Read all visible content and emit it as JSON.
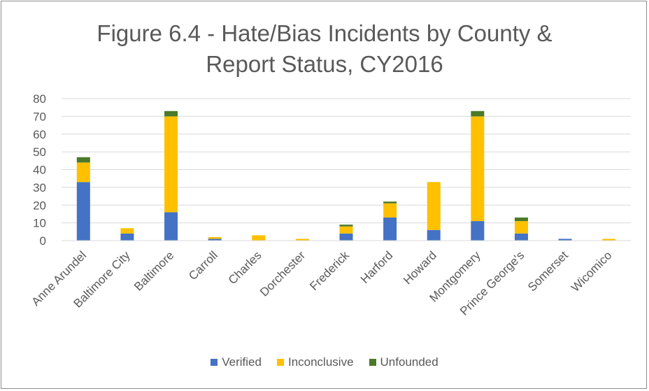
{
  "chart_data": {
    "type": "bar",
    "stacked": true,
    "title": "Figure 6.4 - Hate/Bias Incidents by County & Report Status, CY2016",
    "title_lines": [
      "Figure 6.4 - Hate/Bias Incidents by County &",
      "Report Status, CY2016"
    ],
    "xlabel": "",
    "ylabel": "",
    "ylim": [
      0,
      80
    ],
    "yticks": [
      0,
      10,
      20,
      30,
      40,
      50,
      60,
      70,
      80
    ],
    "grid": true,
    "legend_position": "bottom",
    "categories": [
      "Anne Arundel",
      "Baltimore City",
      "Baltimore",
      "Carroll",
      "Charles",
      "Dorchester",
      "Frederick",
      "Harford",
      "Howard",
      "Montgomery",
      "Prince George's",
      "Somerset",
      "Wicomico"
    ],
    "series": [
      {
        "name": "Verified",
        "color": "#4472c4",
        "values": [
          33,
          4,
          16,
          1,
          0,
          0,
          4,
          13,
          6,
          11,
          4,
          1,
          0
        ]
      },
      {
        "name": "Inconclusive",
        "color": "#ffc000",
        "values": [
          11,
          3,
          54,
          1,
          3,
          1,
          4,
          8,
          27,
          59,
          7,
          0,
          1
        ]
      },
      {
        "name": "Unfounded",
        "color": "#4a7a2a",
        "values": [
          3,
          0,
          3,
          0,
          0,
          0,
          1,
          1,
          0,
          3,
          2,
          0,
          0
        ]
      }
    ]
  }
}
